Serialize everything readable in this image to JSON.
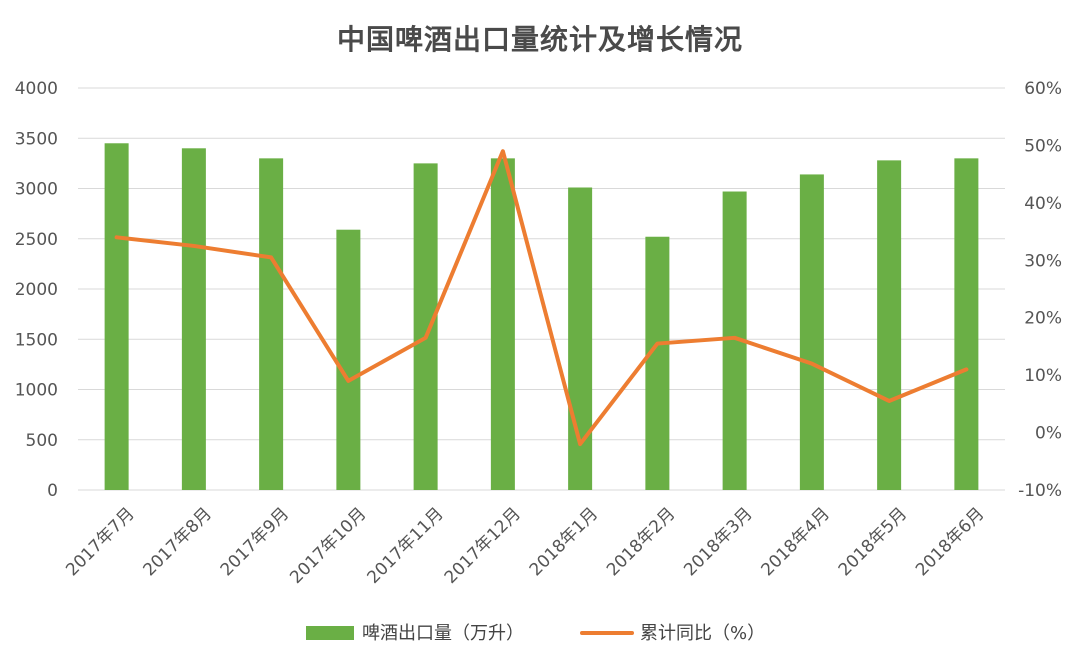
{
  "chart_data": {
    "type": "bar+line",
    "title": "中国啤酒出口量统计及增长情况",
    "categories": [
      "2017年7月",
      "2017年8月",
      "2017年9月",
      "2017年10月",
      "2017年11月",
      "2017年12月",
      "2018年1月",
      "2018年2月",
      "2018年3月",
      "2018年4月",
      "2018年5月",
      "2018年6月"
    ],
    "series": [
      {
        "name": "啤酒出口量（万升）",
        "type": "bar",
        "axis": "left",
        "color": "#6aaf45",
        "values": [
          3450,
          3400,
          3300,
          2590,
          3250,
          3300,
          3010,
          2520,
          2970,
          3140,
          3280,
          3300
        ]
      },
      {
        "name": "累计同比（%）",
        "type": "line",
        "axis": "right",
        "color": "#ed7d31",
        "values": [
          34,
          32.5,
          30.5,
          9,
          16.5,
          49,
          -2,
          15.5,
          16.5,
          12,
          5.5,
          11
        ]
      }
    ],
    "y_left": {
      "min": 0,
      "max": 4000,
      "ticks": [
        "0",
        "500",
        "1000",
        "1500",
        "2000",
        "2500",
        "3000",
        "3500",
        "4000"
      ]
    },
    "y_right": {
      "min": -10,
      "max": 60,
      "ticks": [
        "-10%",
        "0%",
        "10%",
        "20%",
        "30%",
        "40%",
        "50%",
        "60%"
      ]
    },
    "grid": true,
    "legend": "bottom"
  }
}
